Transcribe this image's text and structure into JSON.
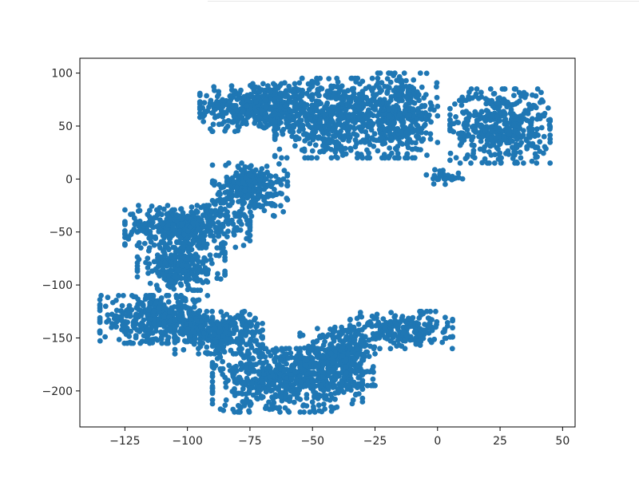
{
  "chart_data": {
    "type": "scatter",
    "title": "",
    "xlabel": "",
    "ylabel": "",
    "xlim": [
      -143,
      55
    ],
    "ylim": [
      -234,
      114
    ],
    "grid": false,
    "legend": "none",
    "marker_color": "#1f77b4",
    "x_ticks": [
      -125,
      -100,
      -75,
      -50,
      -25,
      0,
      25,
      50
    ],
    "x_tick_labels": [
      "−125",
      "−100",
      "−75",
      "−50",
      "−25",
      "0",
      "25",
      "50"
    ],
    "y_ticks": [
      100,
      50,
      0,
      -50,
      -100,
      -150,
      -200
    ],
    "y_tick_labels": [
      "100",
      "50",
      "0",
      "−50",
      "−100",
      "−150",
      "−200"
    ],
    "clusters": [
      {
        "region": "upper-left",
        "x_range": [
          -95,
          -50
        ],
        "y_range": [
          45,
          90
        ],
        "approx_points": 420
      },
      {
        "region": "upper-center",
        "x_range": [
          -65,
          -20
        ],
        "y_range": [
          20,
          95
        ],
        "approx_points": 560
      },
      {
        "region": "upper-center-right",
        "x_range": [
          -30,
          0
        ],
        "y_range": [
          20,
          100
        ],
        "approx_points": 380
      },
      {
        "region": "upper-right",
        "x_range": [
          5,
          45
        ],
        "y_range": [
          15,
          85
        ],
        "approx_points": 450
      },
      {
        "region": "upper-right-low",
        "x_range": [
          -5,
          10
        ],
        "y_range": [
          -5,
          10
        ],
        "approx_points": 30
      },
      {
        "region": "mid-bridge",
        "x_range": [
          -90,
          -60
        ],
        "y_range": [
          -35,
          15
        ],
        "approx_points": 280
      },
      {
        "region": "mid-left",
        "x_range": [
          -125,
          -75
        ],
        "y_range": [
          -65,
          -25
        ],
        "approx_points": 420
      },
      {
        "region": "mid-left-low",
        "x_range": [
          -120,
          -85
        ],
        "y_range": [
          -105,
          -60
        ],
        "approx_points": 260
      },
      {
        "region": "lower-left",
        "x_range": [
          -135,
          -90
        ],
        "y_range": [
          -155,
          -110
        ],
        "approx_points": 400
      },
      {
        "region": "lower-left-bridge",
        "x_range": [
          -105,
          -70
        ],
        "y_range": [
          -165,
          -125
        ],
        "approx_points": 300
      },
      {
        "region": "lower-center",
        "x_range": [
          -90,
          -30
        ],
        "y_range": [
          -220,
          -160
        ],
        "approx_points": 620
      },
      {
        "region": "lower-center-right",
        "x_range": [
          -55,
          -25
        ],
        "y_range": [
          -195,
          -140
        ],
        "approx_points": 350
      },
      {
        "region": "lower-right",
        "x_range": [
          -35,
          6
        ],
        "y_range": [
          -160,
          -125
        ],
        "approx_points": 220
      }
    ]
  }
}
